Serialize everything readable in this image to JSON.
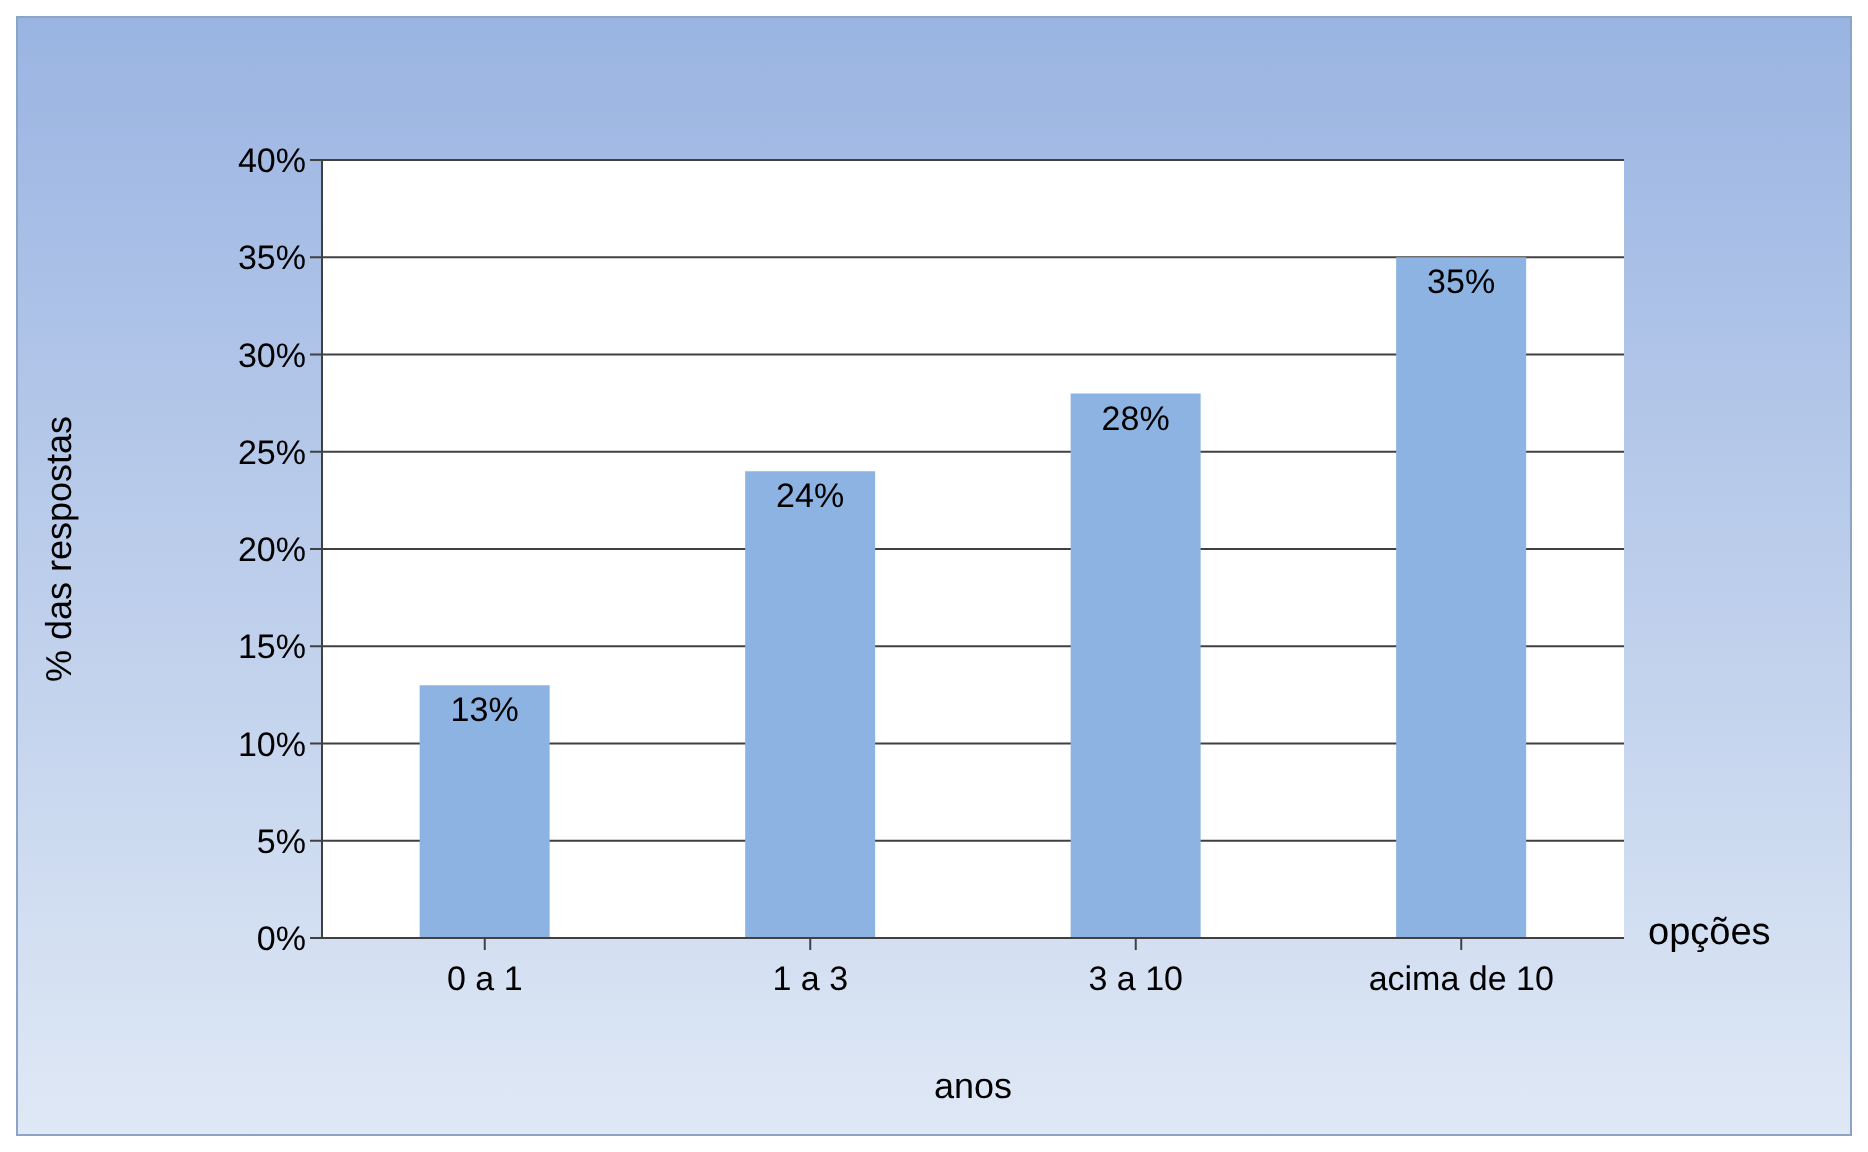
{
  "chart_data": {
    "type": "bar",
    "xlabel": "anos",
    "ylabel": "% das respostas",
    "annotations": [
      "opções"
    ],
    "categories": [
      "0 a 1",
      "1 a 3",
      "3 a 10",
      "acima de 10"
    ],
    "values": [
      13,
      24,
      28,
      35
    ],
    "color": "#8db3e2",
    "value_labels": [
      "13%",
      "24%",
      "28%",
      "35%"
    ],
    "ylim": [
      0,
      40
    ],
    "yticks": [
      {
        "value": 0,
        "label": "0%"
      },
      {
        "value": 5,
        "label": "5%"
      },
      {
        "value": 10,
        "label": "10%"
      },
      {
        "value": 15,
        "label": "15%"
      },
      {
        "value": 20,
        "label": "20%"
      },
      {
        "value": 25,
        "label": "25%"
      },
      {
        "value": 30,
        "label": "30%"
      },
      {
        "value": 35,
        "label": "35%"
      },
      {
        "value": 40,
        "label": "40%"
      }
    ],
    "grid": "y",
    "legend": false
  }
}
